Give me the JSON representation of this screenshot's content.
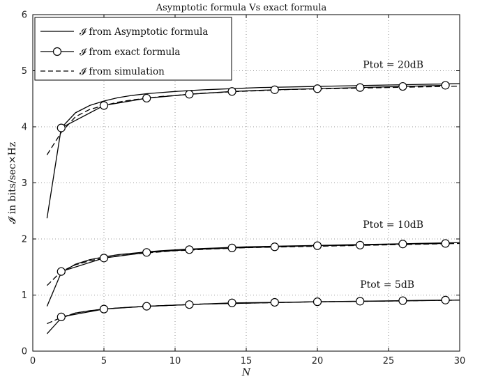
{
  "chart_data": {
    "type": "line",
    "title": "Asymptotic formula Vs exact formula",
    "xlabel": "N",
    "ylabel": "𝓘 in bits/sec×Hz",
    "xlim": [
      0,
      30
    ],
    "ylim": [
      0,
      6
    ],
    "xticks": [
      "0",
      "5",
      "10",
      "15",
      "20",
      "25",
      "30"
    ],
    "yticks": [
      "0",
      "1",
      "2",
      "3",
      "4",
      "5",
      "6"
    ],
    "grid": true,
    "legend_position": "top-left",
    "legend": [
      "𝓘 from Asymptotic formula",
      "𝓘 from exact formula",
      "𝓘 from simulation"
    ],
    "annotations": [
      {
        "text": "Ptot = 20dB",
        "x": 23.2,
        "y": 5.05
      },
      {
        "text": "Ptot = 10dB",
        "x": 23.2,
        "y": 2.2
      },
      {
        "text": "Ptot = 5dB",
        "x": 23.0,
        "y": 1.13
      }
    ],
    "series": [
      {
        "name": "𝓘 from Asymptotic formula",
        "style": "solid",
        "groups": [
          {
            "x": [
              1,
              2,
              3,
              4,
              5,
              6,
              7,
              8,
              9,
              10,
              11,
              12,
              13,
              14,
              15,
              16,
              17,
              18,
              19,
              20,
              21,
              22,
              23,
              24,
              25,
              26,
              27,
              28,
              29,
              30
            ],
            "y": [
              2.37,
              3.98,
              4.25,
              4.38,
              4.46,
              4.52,
              4.56,
              4.59,
              4.61,
              4.63,
              4.645,
              4.66,
              4.67,
              4.68,
              4.69,
              4.7,
              4.705,
              4.71,
              4.715,
              4.72,
              4.725,
              4.73,
              4.735,
              4.74,
              4.745,
              4.75,
              4.755,
              4.76,
              4.765,
              4.77
            ]
          },
          {
            "x": [
              1,
              2,
              3,
              4,
              5,
              6,
              7,
              8,
              9,
              10,
              11,
              12,
              13,
              14,
              15,
              16,
              17,
              18,
              19,
              20,
              21,
              22,
              23,
              24,
              25,
              26,
              27,
              28,
              29,
              30
            ],
            "y": [
              0.8,
              1.4,
              1.55,
              1.63,
              1.68,
              1.72,
              1.745,
              1.77,
              1.79,
              1.805,
              1.82,
              1.83,
              1.84,
              1.85,
              1.86,
              1.865,
              1.87,
              1.875,
              1.88,
              1.885,
              1.89,
              1.895,
              1.9,
              1.905,
              1.91,
              1.915,
              1.92,
              1.925,
              1.93,
              1.935
            ]
          },
          {
            "x": [
              1,
              2,
              3,
              4,
              5,
              6,
              7,
              8,
              9,
              10,
              11,
              12,
              13,
              14,
              15,
              16,
              17,
              18,
              19,
              20,
              21,
              22,
              23,
              24,
              25,
              26,
              27,
              28,
              29,
              30
            ],
            "y": [
              0.31,
              0.59,
              0.68,
              0.72,
              0.75,
              0.77,
              0.785,
              0.8,
              0.81,
              0.82,
              0.83,
              0.84,
              0.845,
              0.85,
              0.855,
              0.86,
              0.865,
              0.87,
              0.875,
              0.88,
              0.882,
              0.885,
              0.888,
              0.89,
              0.893,
              0.896,
              0.9,
              0.903,
              0.906,
              0.91
            ]
          }
        ]
      },
      {
        "name": "𝓘 from exact formula",
        "style": "solid-circle",
        "groups": [
          {
            "x": [
              2,
              5,
              8,
              11,
              14,
              17,
              20,
              23,
              26,
              29
            ],
            "y": [
              3.98,
              4.38,
              4.51,
              4.58,
              4.63,
              4.66,
              4.68,
              4.7,
              4.72,
              4.74
            ]
          },
          {
            "x": [
              2,
              5,
              8,
              11,
              14,
              17,
              20,
              23,
              26,
              29
            ],
            "y": [
              1.42,
              1.66,
              1.76,
              1.81,
              1.84,
              1.86,
              1.88,
              1.89,
              1.91,
              1.92
            ]
          },
          {
            "x": [
              2,
              5,
              8,
              11,
              14,
              17,
              20,
              23,
              26,
              29
            ],
            "y": [
              0.61,
              0.75,
              0.8,
              0.83,
              0.86,
              0.87,
              0.88,
              0.89,
              0.9,
              0.91
            ]
          }
        ]
      },
      {
        "name": "𝓘 from simulation",
        "style": "dashed",
        "groups": [
          {
            "x": [
              1,
              2,
              3,
              4,
              5,
              6,
              7,
              8,
              9,
              10,
              11,
              12,
              13,
              14,
              15,
              16,
              17,
              18,
              19,
              20,
              21,
              22,
              23,
              24,
              25,
              26,
              27,
              28,
              29,
              30
            ],
            "y": [
              3.5,
              3.9,
              4.18,
              4.31,
              4.38,
              4.44,
              4.48,
              4.51,
              4.54,
              4.56,
              4.58,
              4.6,
              4.61,
              4.625,
              4.635,
              4.645,
              4.655,
              4.665,
              4.67,
              4.675,
              4.68,
              4.685,
              4.69,
              4.695,
              4.7,
              4.705,
              4.71,
              4.715,
              4.72,
              4.725
            ]
          },
          {
            "x": [
              1,
              2,
              3,
              4,
              5,
              6,
              7,
              8,
              9,
              10,
              11,
              12,
              13,
              14,
              15,
              16,
              17,
              18,
              19,
              20,
              21,
              22,
              23,
              24,
              25,
              26,
              27,
              28,
              29,
              30
            ],
            "y": [
              1.17,
              1.42,
              1.54,
              1.61,
              1.66,
              1.7,
              1.73,
              1.75,
              1.77,
              1.79,
              1.8,
              1.815,
              1.825,
              1.835,
              1.845,
              1.85,
              1.855,
              1.86,
              1.865,
              1.87,
              1.875,
              1.88,
              1.885,
              1.89,
              1.895,
              1.9,
              1.905,
              1.91,
              1.915,
              1.92
            ]
          },
          {
            "x": [
              1,
              2,
              3,
              4,
              5,
              6,
              7,
              8,
              9,
              10,
              11,
              12,
              13,
              14,
              15,
              16,
              17,
              18,
              19,
              20,
              21,
              22,
              23,
              24,
              25,
              26,
              27,
              28,
              29,
              30
            ],
            "y": [
              0.49,
              0.6,
              0.68,
              0.72,
              0.75,
              0.77,
              0.785,
              0.8,
              0.81,
              0.82,
              0.83,
              0.84,
              0.845,
              0.85,
              0.855,
              0.86,
              0.865,
              0.87,
              0.875,
              0.88,
              0.882,
              0.885,
              0.888,
              0.89,
              0.893,
              0.896,
              0.9,
              0.903,
              0.906,
              0.91
            ]
          }
        ]
      }
    ]
  }
}
